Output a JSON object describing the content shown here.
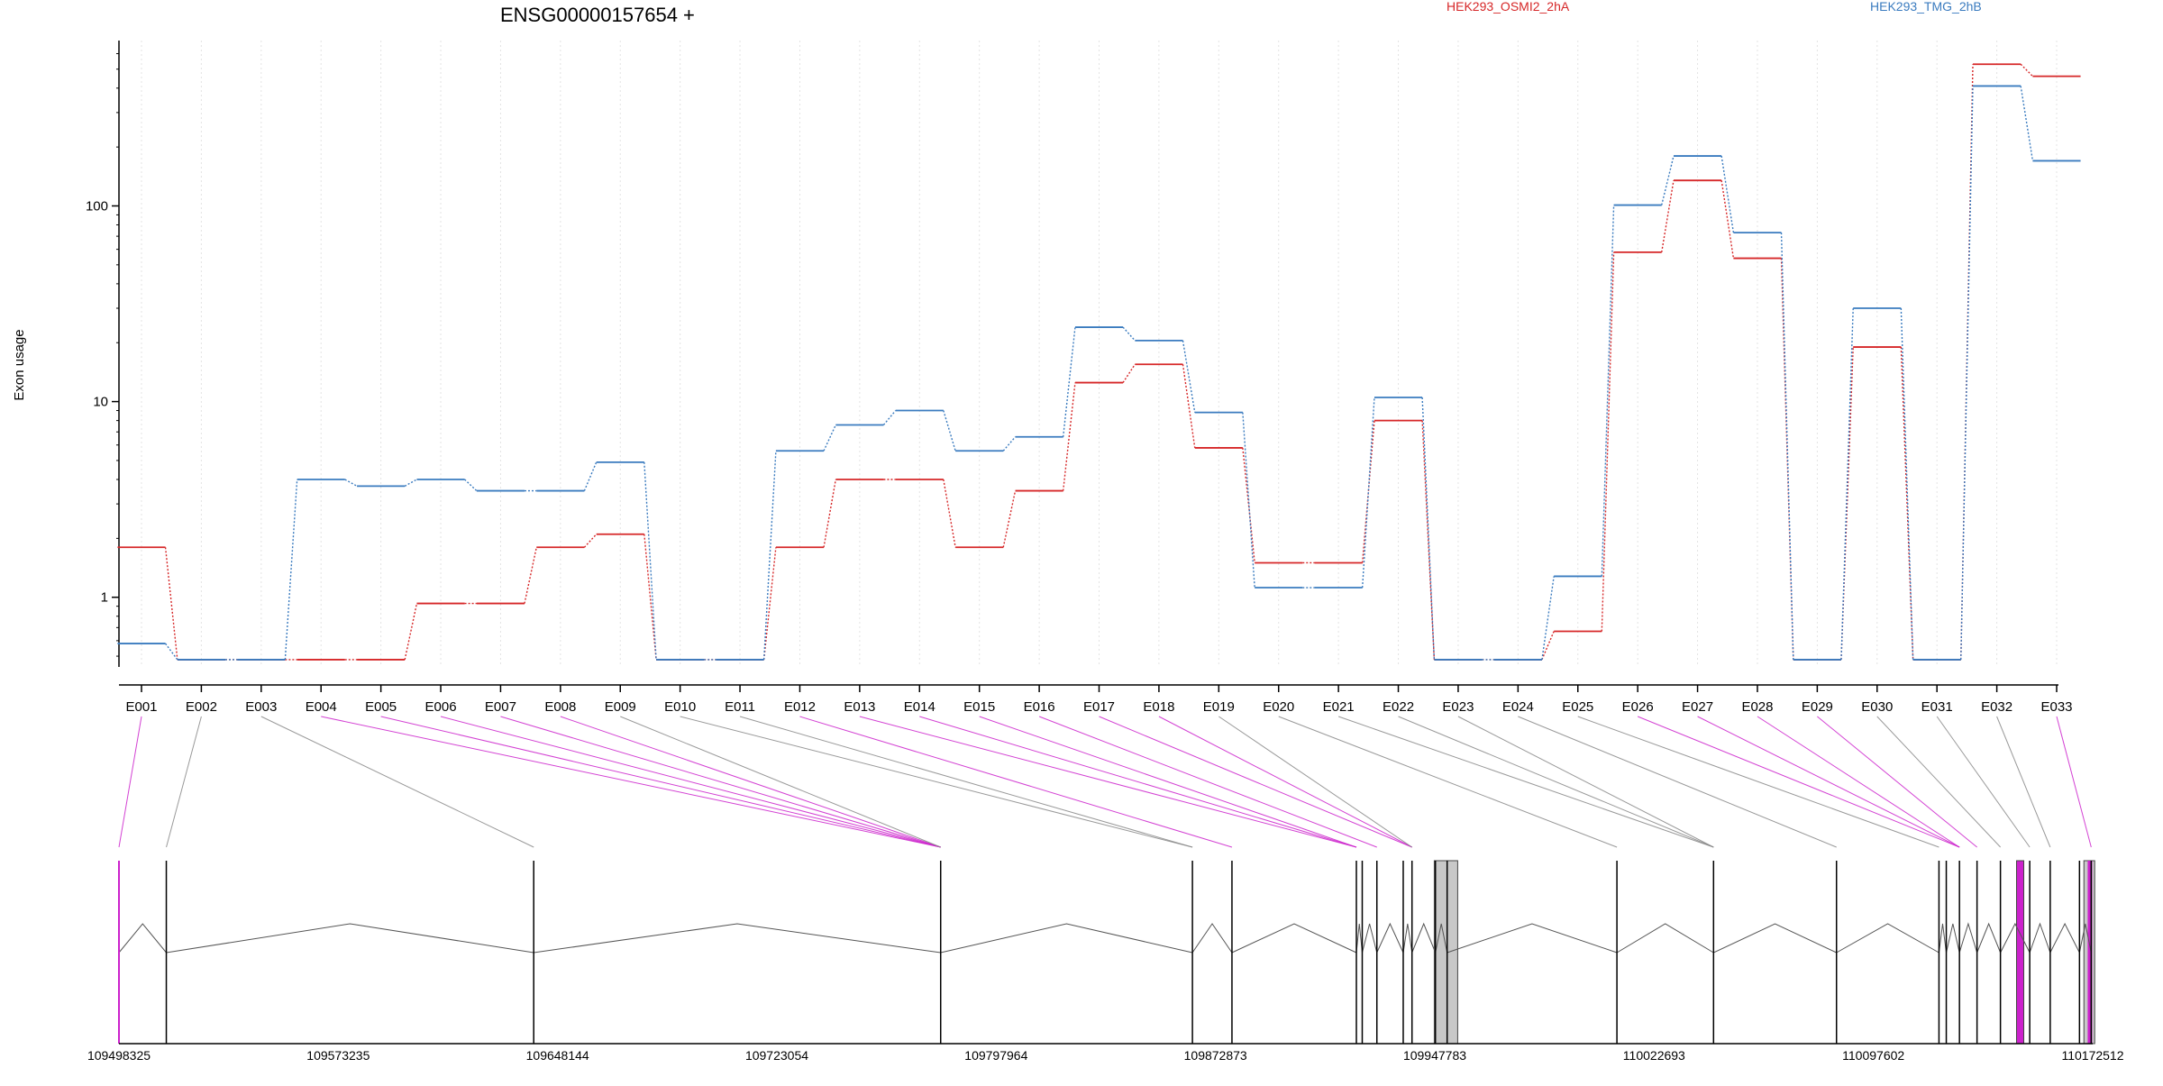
{
  "chart_data": {
    "type": "line",
    "title": "ENSG00000157654 +",
    "ylabel": "Exon usage",
    "xlabel": "",
    "y_scale": "log",
    "ylim": [
      0.45,
      700
    ],
    "y_ticks": [
      {
        "value": 1,
        "label": "1"
      },
      {
        "value": 10,
        "label": "10"
      },
      {
        "value": 100,
        "label": "100"
      }
    ],
    "grid": "vertical dotted lines at each exon",
    "legend_placement": "top",
    "categories": [
      "E001",
      "E002",
      "E003",
      "E004",
      "E005",
      "E006",
      "E007",
      "E008",
      "E009",
      "E010",
      "E011",
      "E012",
      "E013",
      "E014",
      "E015",
      "E016",
      "E017",
      "E018",
      "E019",
      "E020",
      "E021",
      "E022",
      "E023",
      "E024",
      "E025",
      "E026",
      "E027",
      "E028",
      "E029",
      "E030",
      "E031",
      "E032",
      "E033"
    ],
    "series": [
      {
        "name": "HEK293_OSMI2_2hA",
        "color": "#d62728",
        "values": [
          1.8,
          0.48,
          0.48,
          0.48,
          0.48,
          0.93,
          0.93,
          1.8,
          2.1,
          0.48,
          0.48,
          1.8,
          4.0,
          4.0,
          1.8,
          3.5,
          12.5,
          15.5,
          5.8,
          1.5,
          1.5,
          8.0,
          0.48,
          0.48,
          0.67,
          58,
          135,
          54,
          0.48,
          19,
          0.48,
          530,
          460
        ]
      },
      {
        "name": "HEK293_TMG_2hB",
        "color": "#3a7bbf",
        "values": [
          0.58,
          0.48,
          0.48,
          4.0,
          3.7,
          4.0,
          3.5,
          3.5,
          4.9,
          0.48,
          0.48,
          5.6,
          7.6,
          9.0,
          5.6,
          6.6,
          24,
          20.5,
          8.8,
          1.12,
          1.12,
          10.5,
          0.48,
          0.48,
          1.28,
          101,
          180,
          73,
          0.48,
          30,
          0.48,
          410,
          170
        ]
      }
    ],
    "gene_model": {
      "coordinate_min": 109498325,
      "coordinate_max": 110172512,
      "coordinate_labels": [
        "109498325",
        "109573235",
        "109648144",
        "109723054",
        "109797964",
        "109872873",
        "109947783",
        "110022693",
        "110097602",
        "110172512"
      ],
      "exon_positions": [
        109498325,
        109514500,
        109640000,
        109779000,
        109865000,
        109878500,
        109921000,
        109923000,
        109928000,
        109937000,
        109940000,
        109948000,
        109952000,
        110010000,
        110043000,
        110085000,
        110120000,
        110122500,
        110127000,
        110133000,
        110141000,
        110151000,
        110158000,
        110168000,
        110172000
      ],
      "exon_highlight_color": "#cc22cc",
      "neutral_color": "#888888",
      "connectors": [
        {
          "exon": "E001",
          "pos": 109498325,
          "significant": true
        },
        {
          "exon": "E002",
          "pos": 109514500,
          "significant": false
        },
        {
          "exon": "E003",
          "pos": 109640000,
          "significant": false
        },
        {
          "exon": "E004",
          "pos": 109779000,
          "significant": true
        },
        {
          "exon": "E005",
          "pos": 109779000,
          "significant": true
        },
        {
          "exon": "E006",
          "pos": 109779000,
          "significant": true
        },
        {
          "exon": "E007",
          "pos": 109779000,
          "significant": true
        },
        {
          "exon": "E008",
          "pos": 109779000,
          "significant": true
        },
        {
          "exon": "E009",
          "pos": 109779000,
          "significant": false
        },
        {
          "exon": "E010",
          "pos": 109865000,
          "significant": false
        },
        {
          "exon": "E011",
          "pos": 109865000,
          "significant": false
        },
        {
          "exon": "E012",
          "pos": 109878500,
          "significant": true
        },
        {
          "exon": "E013",
          "pos": 109921000,
          "significant": true
        },
        {
          "exon": "E014",
          "pos": 109921000,
          "significant": true
        },
        {
          "exon": "E015",
          "pos": 109921000,
          "significant": true
        },
        {
          "exon": "E016",
          "pos": 109928000,
          "significant": true
        },
        {
          "exon": "E017",
          "pos": 109940000,
          "significant": true
        },
        {
          "exon": "E018",
          "pos": 109940000,
          "significant": true
        },
        {
          "exon": "E019",
          "pos": 109940000,
          "significant": false
        },
        {
          "exon": "E020",
          "pos": 110010000,
          "significant": false
        },
        {
          "exon": "E021",
          "pos": 110043000,
          "significant": false
        },
        {
          "exon": "E022",
          "pos": 110043000,
          "significant": false
        },
        {
          "exon": "E023",
          "pos": 110043000,
          "significant": false
        },
        {
          "exon": "E024",
          "pos": 110085000,
          "significant": false
        },
        {
          "exon": "E025",
          "pos": 110120000,
          "significant": false
        },
        {
          "exon": "E026",
          "pos": 110127000,
          "significant": true
        },
        {
          "exon": "E027",
          "pos": 110127000,
          "significant": true
        },
        {
          "exon": "E028",
          "pos": 110127000,
          "significant": true
        },
        {
          "exon": "E029",
          "pos": 110133000,
          "significant": true
        },
        {
          "exon": "E030",
          "pos": 110141000,
          "significant": false
        },
        {
          "exon": "E031",
          "pos": 110151000,
          "significant": false
        },
        {
          "exon": "E032",
          "pos": 110158000,
          "significant": false
        },
        {
          "exon": "E033",
          "pos": 110172000,
          "significant": true
        }
      ]
    }
  }
}
